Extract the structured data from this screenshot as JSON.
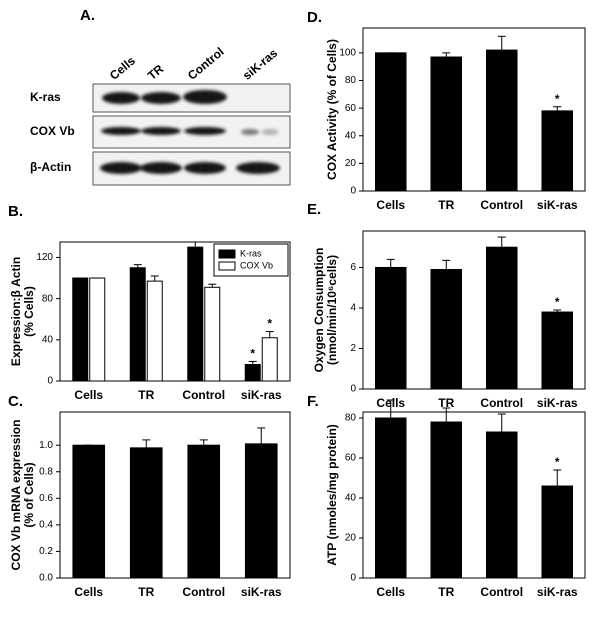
{
  "blot": {
    "panel": "A.",
    "lanes": [
      "Cells",
      "TR",
      "Control",
      "siK-ras"
    ],
    "rows": [
      "K-ras",
      "COX Vb",
      "β-Actin"
    ]
  },
  "chart_data": [
    {
      "type": "bar",
      "panel": "B.",
      "ylabel": [
        "Expression:β Actin",
        "(% Cells)"
      ],
      "categories": [
        "Cells",
        "TR",
        "Control",
        "siK-ras"
      ],
      "series": [
        {
          "name": "K-ras",
          "color": "#000000",
          "values": [
            100,
            110,
            130,
            16
          ],
          "errors": [
            0,
            3,
            5,
            3
          ],
          "markers": [
            null,
            null,
            null,
            "*"
          ]
        },
        {
          "name": "COX Vb",
          "color": "#ffffff",
          "values": [
            100,
            97,
            91,
            42
          ],
          "errors": [
            0,
            5,
            3,
            6
          ],
          "markers": [
            null,
            null,
            null,
            "*"
          ]
        }
      ],
      "ylim": [
        0,
        135
      ],
      "yticks": [
        0,
        40,
        80,
        120
      ],
      "legend": "upper right",
      "grid": false
    },
    {
      "type": "bar",
      "panel": "C.",
      "ylabel": [
        "COX Vb mRNA expression",
        "(% of Cells)"
      ],
      "categories": [
        "Cells",
        "TR",
        "Control",
        "siK-ras"
      ],
      "values": [
        1.0,
        0.98,
        1.0,
        1.01
      ],
      "errors": [
        0,
        0.06,
        0.04,
        0.12
      ],
      "color": "#000000",
      "ylim": [
        0,
        1.25
      ],
      "yticks": [
        {
          "value": 0,
          "label": "0.0"
        },
        0.2,
        0.4,
        0.6,
        0.8,
        {
          "value": 1,
          "label": "1.0"
        }
      ],
      "grid": false
    },
    {
      "type": "bar",
      "panel": "D.",
      "ylabel": [
        "COX Activity (% of Cells)"
      ],
      "categories": [
        "Cells",
        "TR",
        "Control",
        "siK-ras"
      ],
      "values": [
        100,
        97,
        102,
        58
      ],
      "errors": [
        0,
        3,
        10,
        3
      ],
      "markers": [
        null,
        null,
        null,
        "*"
      ],
      "color": "#000000",
      "ylim": [
        0,
        118
      ],
      "yticks": [
        0,
        20,
        40,
        60,
        80,
        100
      ],
      "grid": false
    },
    {
      "type": "bar",
      "panel": "E.",
      "ylabel": [
        "Oxygen Consumption",
        "(nmol/min/10⁶cells)"
      ],
      "categories": [
        "Cells",
        "TR",
        "Control",
        "siK-ras"
      ],
      "values": [
        6.0,
        5.9,
        7.0,
        3.8
      ],
      "errors": [
        0.4,
        0.45,
        0.5,
        0.1
      ],
      "markers": [
        null,
        null,
        null,
        "*"
      ],
      "color": "#000000",
      "ylim": [
        0,
        7.8
      ],
      "yticks": [
        0,
        2,
        4,
        6
      ],
      "grid": false
    },
    {
      "type": "bar",
      "panel": "F.",
      "ylabel": [
        "ATP (nmoles/mg protein)"
      ],
      "categories": [
        "Cells",
        "TR",
        "Control",
        "siK-ras"
      ],
      "values": [
        80,
        78,
        73,
        46
      ],
      "errors": [
        9,
        7,
        9,
        8
      ],
      "markers": [
        null,
        null,
        null,
        "*"
      ],
      "color": "#000000",
      "ylim": [
        0,
        83
      ],
      "yticks": [
        0,
        20,
        40,
        60,
        80
      ],
      "grid": false
    }
  ]
}
